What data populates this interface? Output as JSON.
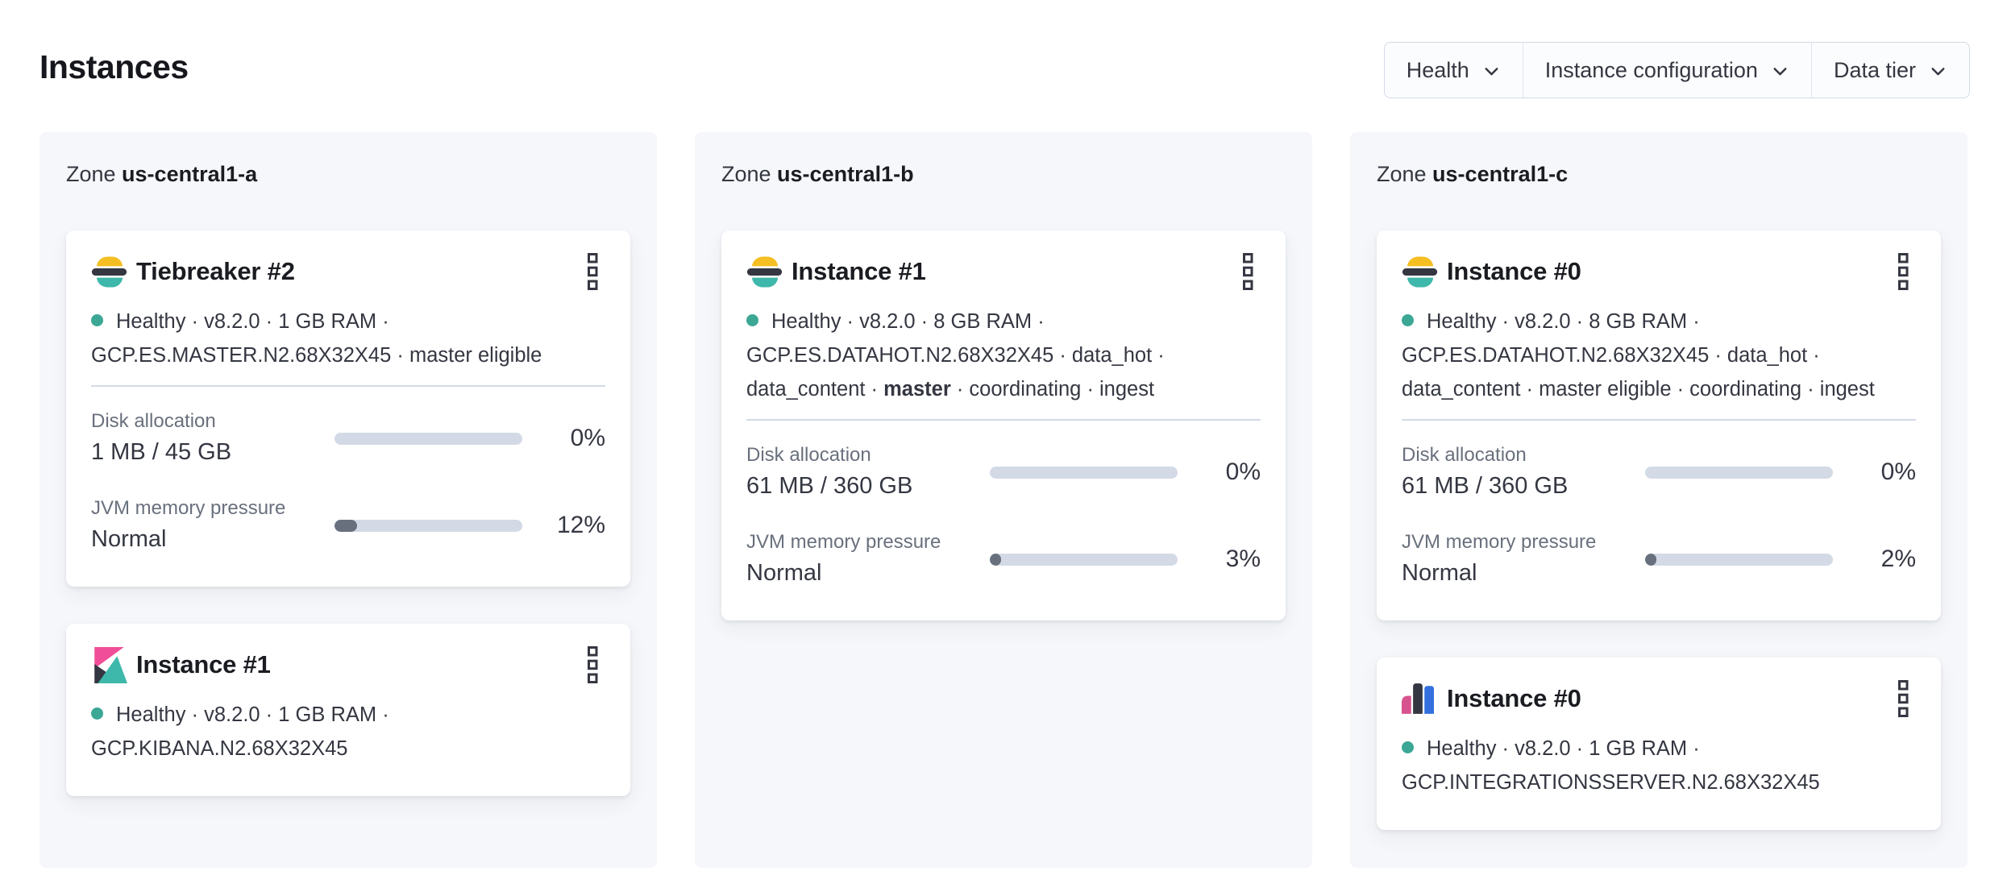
{
  "page": {
    "title": "Instances"
  },
  "filters": [
    {
      "label": "Health"
    },
    {
      "label": "Instance configuration"
    },
    {
      "label": "Data tier"
    }
  ],
  "colors": {
    "health_dot": "#3CA795",
    "bar_track": "#D3DAE6",
    "bar_fill": "#69707D",
    "divider": "#D3DAE6",
    "zone_bg": "#F5F7FA",
    "es_yellow": "#F5BF23",
    "es_dark": "#343741",
    "es_teal": "#3EB8AA",
    "kibana_pink": "#F04E98",
    "kibana_dark": "#343741",
    "kibana_teal": "#3EB8AA",
    "integrations_pink": "#D6538E",
    "integrations_dark": "#343741",
    "integrations_blue": "#3370DE"
  },
  "zones": [
    {
      "prefix": "Zone",
      "name": "us-central1-a",
      "cards": [
        {
          "icon": "elasticsearch",
          "title": "Tiebreaker #2",
          "meta_lines": [
            {
              "dot": true,
              "segments": [
                {
                  "t": "Healthy · v8.2.0 · 1 GB RAM ·"
                }
              ]
            },
            {
              "segments": [
                {
                  "t": "GCP.ES.MASTER.N2.68X32X45 · master eligible"
                }
              ]
            }
          ],
          "metrics": [
            {
              "label": "Disk allocation",
              "value": "1 MB / 45 GB",
              "percent": 0,
              "percent_label": "0%"
            },
            {
              "label": "JVM memory pressure",
              "value": "Normal",
              "percent": 12,
              "percent_label": "12%"
            }
          ]
        },
        {
          "icon": "kibana",
          "title": "Instance #1",
          "meta_lines": [
            {
              "dot": true,
              "segments": [
                {
                  "t": "Healthy · v8.2.0 · 1 GB RAM ·"
                }
              ]
            },
            {
              "segments": [
                {
                  "t": "GCP.KIBANA.N2.68X32X45"
                }
              ]
            }
          ],
          "metrics": []
        }
      ]
    },
    {
      "prefix": "Zone",
      "name": "us-central1-b",
      "cards": [
        {
          "icon": "elasticsearch",
          "title": "Instance #1",
          "meta_lines": [
            {
              "dot": true,
              "segments": [
                {
                  "t": "Healthy · v8.2.0 · 8 GB RAM ·"
                }
              ]
            },
            {
              "segments": [
                {
                  "t": "GCP.ES.DATAHOT.N2.68X32X45 · data_hot ·"
                }
              ]
            },
            {
              "segments": [
                {
                  "t": "data_content · "
                },
                {
                  "t": "master",
                  "b": true
                },
                {
                  "t": " · coordinating · ingest"
                }
              ]
            }
          ],
          "metrics": [
            {
              "label": "Disk allocation",
              "value": "61 MB / 360 GB",
              "percent": 0,
              "percent_label": "0%"
            },
            {
              "label": "JVM memory pressure",
              "value": "Normal",
              "percent": 3,
              "percent_label": "3%"
            }
          ]
        }
      ]
    },
    {
      "prefix": "Zone",
      "name": "us-central1-c",
      "cards": [
        {
          "icon": "elasticsearch",
          "title": "Instance #0",
          "meta_lines": [
            {
              "dot": true,
              "segments": [
                {
                  "t": "Healthy · v8.2.0 · 8 GB RAM ·"
                }
              ]
            },
            {
              "segments": [
                {
                  "t": "GCP.ES.DATAHOT.N2.68X32X45 · data_hot ·"
                }
              ]
            },
            {
              "segments": [
                {
                  "t": "data_content · master eligible · coordinating · ingest"
                }
              ]
            }
          ],
          "metrics": [
            {
              "label": "Disk allocation",
              "value": "61 MB / 360 GB",
              "percent": 0,
              "percent_label": "0%"
            },
            {
              "label": "JVM memory pressure",
              "value": "Normal",
              "percent": 2,
              "percent_label": "2%"
            }
          ]
        },
        {
          "icon": "integrations-server",
          "title": "Instance #0",
          "meta_lines": [
            {
              "dot": true,
              "segments": [
                {
                  "t": "Healthy · v8.2.0 · 1 GB RAM ·"
                }
              ]
            },
            {
              "segments": [
                {
                  "t": "GCP.INTEGRATIONSSERVER.N2.68X32X45"
                }
              ]
            }
          ],
          "metrics": []
        }
      ]
    }
  ]
}
